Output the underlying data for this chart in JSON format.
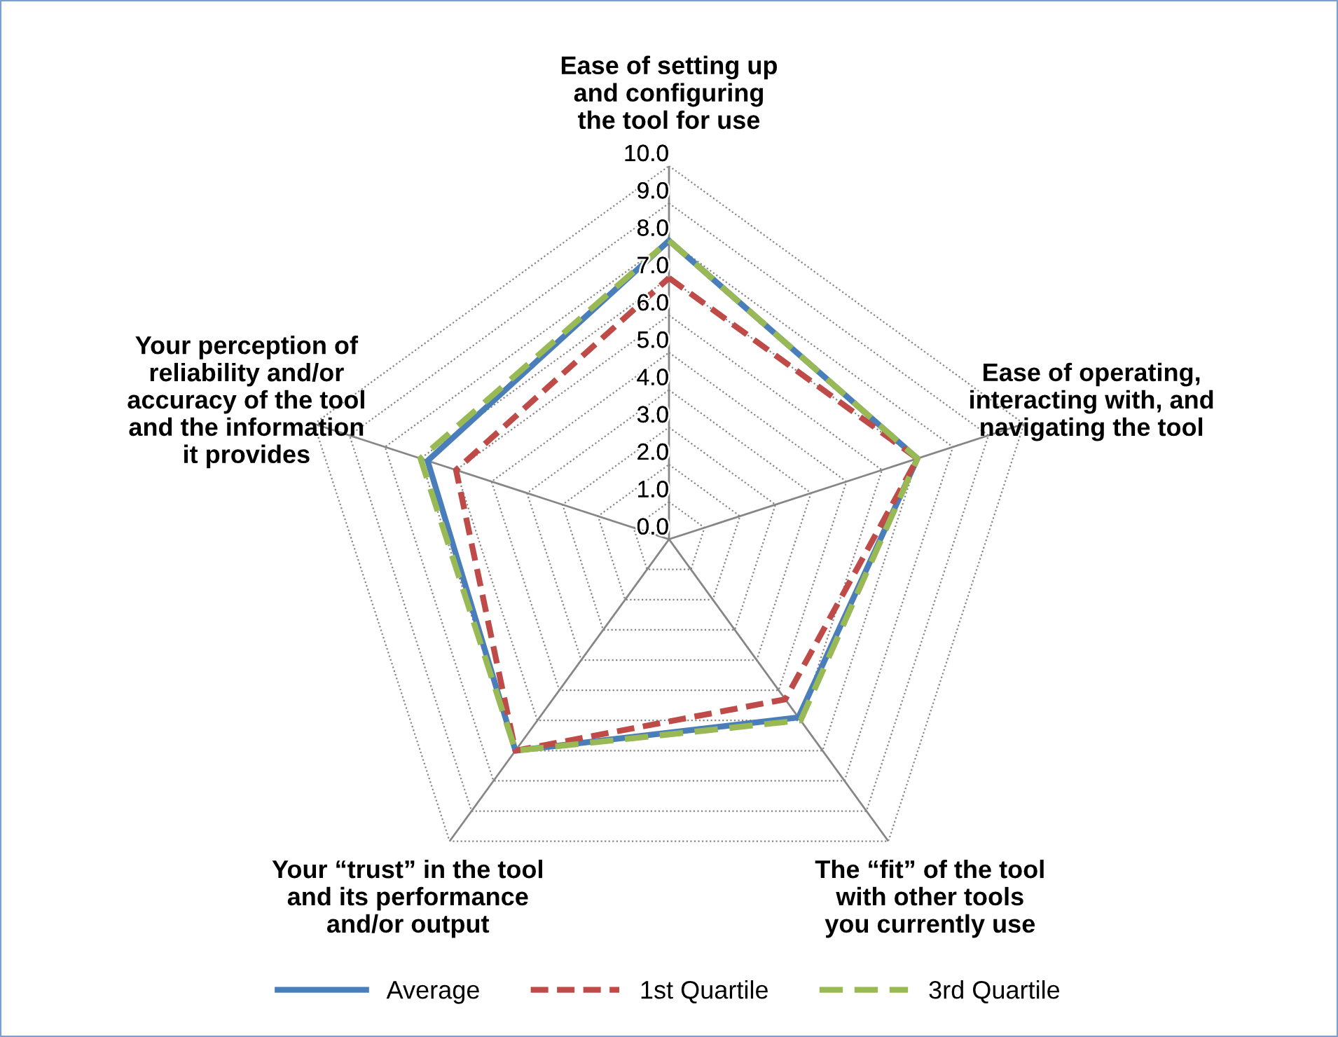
{
  "chart_data": {
    "type": "radar",
    "categories": [
      "Ease of setting up\nand configuring\nthe tool for use",
      "Ease of operating,\ninteracting with, and\nnavigating the tool",
      "The “fit” of the tool\nwith other tools\nyou currently use",
      "Your “trust” in the tool\nand its performance\nand/or output",
      "Your perception of\nreliability and/or\naccuracy of the tool\nand the information\nit provides"
    ],
    "series": [
      {
        "name": "Average",
        "color": "#4a7ebb",
        "line_style": "solid",
        "values": [
          8.0,
          7.0,
          5.9,
          7.0,
          6.8
        ]
      },
      {
        "name": "1st Quartile",
        "color": "#be4b48",
        "line_style": "dashed",
        "values": [
          7.0,
          7.0,
          5.3,
          7.0,
          6.0
        ]
      },
      {
        "name": "3rd Quartile",
        "color": "#98b954",
        "line_style": "dashed",
        "values": [
          8.0,
          7.0,
          6.0,
          7.0,
          7.0
        ]
      }
    ],
    "ylim": [
      0,
      10
    ],
    "yticks": [
      {
        "value": 0,
        "label": "0.0"
      },
      {
        "value": 1,
        "label": "1.0"
      },
      {
        "value": 2,
        "label": "2.0"
      },
      {
        "value": 3,
        "label": "3.0"
      },
      {
        "value": 4,
        "label": "4.0"
      },
      {
        "value": 5,
        "label": "5.0"
      },
      {
        "value": 6,
        "label": "6.0"
      },
      {
        "value": 7,
        "label": "7.0"
      },
      {
        "value": 8,
        "label": "8.0"
      },
      {
        "value": 9,
        "label": "9.0"
      },
      {
        "value": 10,
        "label": "10.0"
      }
    ],
    "grid": true,
    "legend": "bottom",
    "marker": "none"
  }
}
